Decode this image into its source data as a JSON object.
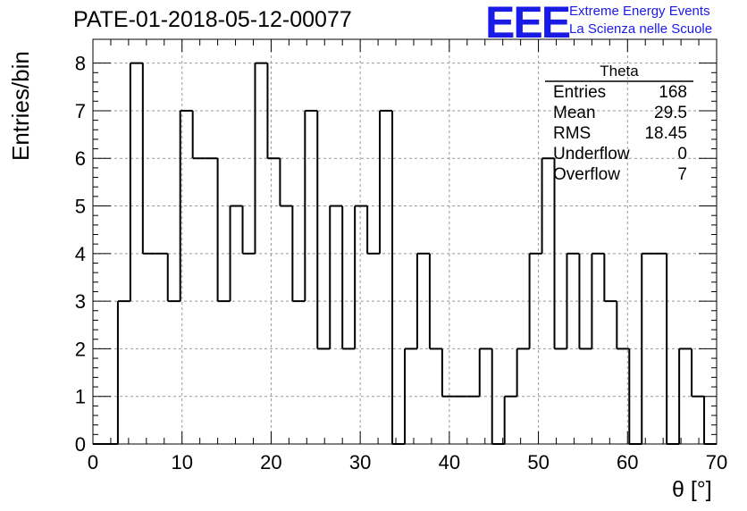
{
  "header": {
    "title": "PATE-01-2018-05-12-00077",
    "logo_mark": "EEE",
    "logo_line1": "Extreme Energy Events",
    "logo_line2": "La Scienza nelle Scuole"
  },
  "stats": {
    "title": "Theta",
    "rows": [
      {
        "label": "Entries",
        "value": "168"
      },
      {
        "label": "Mean",
        "value": "29.5"
      },
      {
        "label": "RMS",
        "value": "18.45"
      },
      {
        "label": "Underflow",
        "value": "0"
      },
      {
        "label": "Overflow",
        "value": "7"
      }
    ]
  },
  "colors": {
    "line": "#000000",
    "grid": "#999999",
    "logo": "#1a1ae6"
  },
  "chart_data": {
    "type": "bar",
    "style": "step-histogram",
    "xlabel": "θ [°]",
    "ylabel": "Entries/bin",
    "xlim": [
      0,
      70
    ],
    "ylim": [
      0,
      8.5
    ],
    "bin_width": 1.4,
    "x_ticks": [
      0,
      10,
      20,
      30,
      40,
      50,
      60,
      70
    ],
    "y_ticks": [
      0,
      1,
      2,
      3,
      4,
      5,
      6,
      7,
      8
    ],
    "grid": true,
    "values": [
      0,
      0,
      3,
      8,
      4,
      4,
      3,
      7,
      6,
      6,
      3,
      5,
      4,
      8,
      6,
      5,
      3,
      7,
      2,
      5,
      2,
      5,
      4,
      7,
      0,
      2,
      4,
      2,
      1,
      1,
      1,
      2,
      0,
      1,
      2,
      4,
      6,
      2,
      4,
      2,
      4,
      3,
      2,
      0,
      4,
      4,
      0,
      2,
      1,
      0
    ]
  }
}
